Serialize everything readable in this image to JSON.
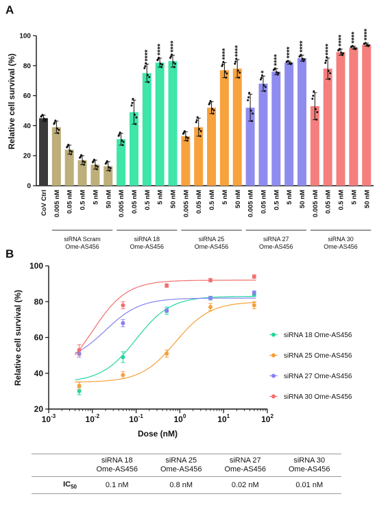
{
  "panel_a": {
    "letter": "A",
    "chart_data": {
      "type": "bar",
      "ylabel": "Relative cell survival (%)",
      "ylim": [
        0,
        100
      ],
      "yticks": [
        "0",
        "20",
        "40",
        "60",
        "80",
        "100"
      ],
      "categories": [
        "CoV Ctrl",
        "0.005 nM",
        "0.05 nM",
        "0.5 nM",
        "5 nM",
        "50 nM",
        "0.005 nM",
        "0.05 nM",
        "0.5 nM",
        "5 nM",
        "50 nM",
        "0.005 nM",
        "0.05 nM",
        "0.5 nM",
        "5 nM",
        "50 nM",
        "0.005 nM",
        "0.05 nM",
        "0.5 nM",
        "5 nM",
        "50 nM",
        "0.005 nM",
        "0.05 nM",
        "0.5 nM",
        "5 nM",
        "50 nM"
      ],
      "values": [
        45,
        39,
        24,
        17,
        14,
        13,
        31,
        49,
        75,
        82,
        83,
        33,
        39,
        52,
        77,
        78,
        52,
        68,
        76,
        82,
        85,
        53,
        78,
        89,
        92,
        94
      ],
      "errors": [
        2,
        4,
        3,
        3,
        3,
        3,
        4,
        8,
        6,
        3,
        4,
        3,
        6,
        4,
        5,
        6,
        9,
        5,
        2,
        1,
        2,
        9,
        7,
        2,
        1,
        1
      ],
      "bar_groups": [
        0,
        1,
        1,
        1,
        1,
        1,
        2,
        2,
        2,
        2,
        2,
        3,
        3,
        3,
        3,
        3,
        4,
        4,
        4,
        4,
        4,
        5,
        5,
        5,
        5,
        5
      ],
      "significance": [
        "",
        "",
        "",
        "",
        "",
        "",
        "",
        "",
        "****",
        "****",
        "****",
        "",
        "",
        "",
        "****",
        "****",
        "",
        "*",
        "****",
        "****",
        "****",
        "",
        "****",
        "****",
        "****",
        "****"
      ],
      "groups": [
        {
          "label": "siRNA Scram",
          "label2": "Ome-AS456"
        },
        {
          "label": "siRNA 18",
          "label2": "Ome-AS456"
        },
        {
          "label": "siRNA 25",
          "label2": "Ome-AS456"
        },
        {
          "label": "siRNA 27",
          "label2": "Ome-AS456"
        },
        {
          "label": "siRNA 30",
          "label2": "Ome-AS456"
        }
      ],
      "colors": [
        "#3a3a3a",
        "#bdae7a",
        "#3ee6a8",
        "#f8a23e",
        "#8f8cf0",
        "#f57f7d"
      ]
    }
  },
  "panel_b": {
    "letter": "B",
    "chart_data": {
      "type": "scatter",
      "scale": "log-x",
      "xlabel": "Dose (nM)",
      "ylabel": "Relative cell survival (%)",
      "xlim": [
        0.001,
        100
      ],
      "ylim": [
        20,
        100
      ],
      "yticks": [
        "20",
        "40",
        "60",
        "80",
        "100"
      ],
      "x": [
        0.005,
        0.05,
        0.5,
        5,
        50
      ],
      "series": [
        {
          "name": "siRNA 18 Ome-AS456",
          "color": "#24d5a0",
          "values": [
            30,
            49,
            75,
            82,
            84
          ],
          "errors": [
            2,
            3,
            2,
            1,
            1
          ],
          "fit": {
            "bottom": 35,
            "top": 83,
            "ec50": 0.1
          }
        },
        {
          "name": "siRNA 25 Ome-AS456",
          "color": "#f5a03a",
          "values": [
            33,
            39,
            51,
            77,
            78
          ],
          "errors": [
            2,
            2,
            2,
            2,
            2
          ],
          "fit": {
            "bottom": 35,
            "top": 80,
            "ec50": 0.8
          }
        },
        {
          "name": "siRNA 27 Ome-AS456",
          "color": "#8682ee",
          "values": [
            51,
            68,
            75,
            82,
            85
          ],
          "errors": [
            2,
            2,
            1,
            1,
            1
          ],
          "fit": {
            "bottom": 46,
            "top": 82,
            "ec50": 0.02
          }
        },
        {
          "name": "siRNA 30 Ome-AS456",
          "color": "#f26f6d",
          "values": [
            53,
            78,
            89,
            92,
            94
          ],
          "errors": [
            3,
            2,
            1,
            1,
            1
          ],
          "fit": {
            "bottom": 35,
            "top": 92,
            "ec50": 0.01
          }
        }
      ]
    }
  },
  "ic50_table": {
    "columns": [
      {
        "line1": "siRNA 18",
        "line2": "Ome-AS456"
      },
      {
        "line1": "siRNA 25",
        "line2": "Ome-AS456"
      },
      {
        "line1": "siRNA 27",
        "line2": "Ome-AS456"
      },
      {
        "line1": "siRNA 30",
        "line2": "Ome-AS456"
      }
    ],
    "row_label": "IC",
    "row_label_sub": "50",
    "values": [
      "0.1 nM",
      "0.8 nM",
      "0.02 nM",
      "0.01 nM"
    ]
  }
}
